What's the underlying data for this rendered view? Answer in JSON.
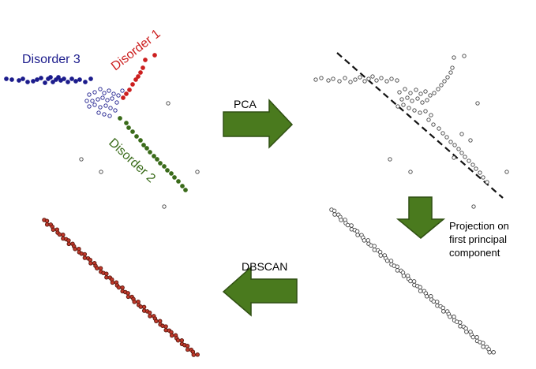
{
  "labels": {
    "disorder_3": "Disorder 3",
    "disorder_1": "Disorder 1",
    "disorder_2": "Disorder 2",
    "pca": "PCA",
    "dbscan": "DBSCAN",
    "projection_line_1": "Projection on",
    "projection_line_2": "first principal",
    "projection_line_3": "component"
  },
  "colors": {
    "disorder_3": "#1c1c8c",
    "disorder_1": "#cc1f1f",
    "disorder_2": "#3a6b1a",
    "arrow_fill": "#4a7a1e",
    "arrow_stroke": "#2f4f12",
    "open_marker": "#444444",
    "cluster_fill": "#c0392b"
  },
  "arrows": {
    "pca": "right",
    "projection": "down",
    "dbscan": "left"
  },
  "panels": {
    "top_left": "three-disorder-scatter",
    "top_right": "unlabeled-scatter-with-principal-axis",
    "bottom_right": "projected-points-on-axis",
    "bottom_left": "dbscan-single-cluster"
  }
}
